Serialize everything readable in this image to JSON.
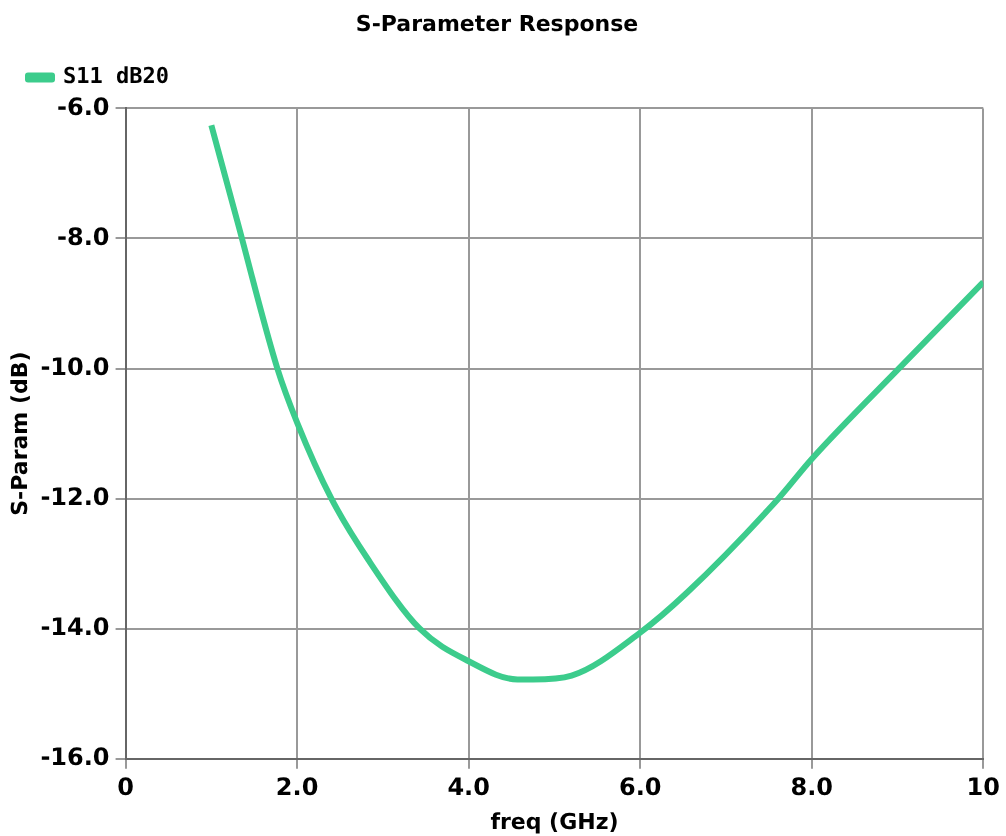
{
  "chart_data": {
    "type": "line",
    "title": "S-Parameter Response",
    "xlabel": "freq (GHz)",
    "ylabel": "S-Param (dB)",
    "series": [
      {
        "name": "S11 dB20",
        "color": "#3ccc8c",
        "x": [
          1.0,
          1.3,
          1.77,
          2.0,
          2.4,
          2.83,
          3.43,
          4.0,
          4.57,
          4.75,
          5.2,
          6.0,
          6.55,
          7.61,
          8.0,
          9.06,
          10.0
        ],
        "values": [
          -6.26,
          -7.72,
          -10.0,
          -10.83,
          -12.0,
          -12.94,
          -14.0,
          -14.5,
          -14.78,
          -14.78,
          -14.72,
          -14.06,
          -13.44,
          -12.0,
          -11.39,
          -9.94,
          -8.67
        ]
      }
    ],
    "xlim": [
      0,
      10
    ],
    "xticks": [
      0,
      {
        "value": 2,
        "label": "2.0"
      },
      {
        "value": 4,
        "label": "4.0"
      },
      {
        "value": 6,
        "label": "6.0"
      },
      {
        "value": 8,
        "label": "8.0"
      },
      10
    ],
    "ylim": [
      -16,
      -6
    ],
    "yticks": [
      {
        "value": -16,
        "label": "-16.0"
      },
      {
        "value": -14,
        "label": "-14.0"
      },
      {
        "value": -12,
        "label": "-12.0"
      },
      {
        "value": -10,
        "label": "-10.0"
      },
      {
        "value": -8,
        "label": "-8.0"
      },
      {
        "value": -6,
        "label": "-6.0"
      }
    ],
    "grid": true,
    "legend": "top left",
    "marker": "none",
    "line_style": "solid"
  }
}
